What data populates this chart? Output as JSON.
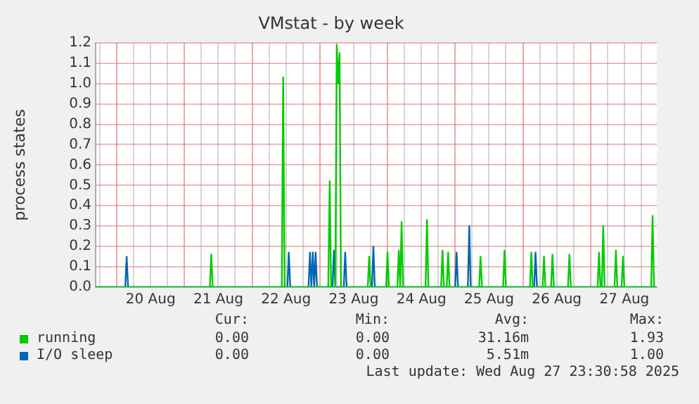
{
  "chart_data": {
    "type": "line",
    "title": "VMstat - by week",
    "ylabel": "process states",
    "xlim": [
      "2025-08-19T16:30",
      "2025-08-27T23:30"
    ],
    "xticks": [
      {
        "value": "2025-08-19T18:00",
        "label": null
      },
      {
        "value": "2025-08-20T00:00",
        "label": null
      },
      {
        "value": "2025-08-20T06:00",
        "label": null
      },
      {
        "value": "2025-08-20T12:00",
        "label": "20 Aug"
      },
      {
        "value": "2025-08-20T18:00",
        "label": null
      },
      {
        "value": "2025-08-21T00:00",
        "label": null
      },
      {
        "value": "2025-08-21T06:00",
        "label": null
      },
      {
        "value": "2025-08-21T12:00",
        "label": "21 Aug"
      },
      {
        "value": "2025-08-21T18:00",
        "label": null
      },
      {
        "value": "2025-08-22T00:00",
        "label": null
      },
      {
        "value": "2025-08-22T06:00",
        "label": null
      },
      {
        "value": "2025-08-22T12:00",
        "label": "22 Aug"
      },
      {
        "value": "2025-08-22T18:00",
        "label": null
      },
      {
        "value": "2025-08-23T00:00",
        "label": null
      },
      {
        "value": "2025-08-23T06:00",
        "label": null
      },
      {
        "value": "2025-08-23T12:00",
        "label": "23 Aug"
      },
      {
        "value": "2025-08-23T18:00",
        "label": null
      },
      {
        "value": "2025-08-24T00:00",
        "label": null
      },
      {
        "value": "2025-08-24T06:00",
        "label": null
      },
      {
        "value": "2025-08-24T12:00",
        "label": "24 Aug"
      },
      {
        "value": "2025-08-24T18:00",
        "label": null
      },
      {
        "value": "2025-08-25T00:00",
        "label": null
      },
      {
        "value": "2025-08-25T06:00",
        "label": null
      },
      {
        "value": "2025-08-25T12:00",
        "label": "25 Aug"
      },
      {
        "value": "2025-08-25T18:00",
        "label": null
      },
      {
        "value": "2025-08-26T00:00",
        "label": null
      },
      {
        "value": "2025-08-26T06:00",
        "label": null
      },
      {
        "value": "2025-08-26T12:00",
        "label": "26 Aug"
      },
      {
        "value": "2025-08-26T18:00",
        "label": null
      },
      {
        "value": "2025-08-27T00:00",
        "label": null
      },
      {
        "value": "2025-08-27T06:00",
        "label": null
      },
      {
        "value": "2025-08-27T12:00",
        "label": "27 Aug"
      },
      {
        "value": "2025-08-27T18:00",
        "label": null
      }
    ],
    "ylim": [
      0,
      1.2
    ],
    "yticks": [
      {
        "value": 0,
        "label": "0.0"
      },
      0.1,
      0.2,
      0.3,
      0.4,
      0.5,
      0.6,
      0.7,
      0.8,
      0.9,
      {
        "value": 1,
        "label": "1.0"
      },
      1.1,
      1.2
    ],
    "grid": true,
    "legend": "bottom",
    "marker": "none",
    "line_style": "solid",
    "series": [
      {
        "name": "running",
        "color": "#00cc00",
        "x": [
          "2025-08-19T16:30",
          "2025-08-21T09:00",
          "2025-08-21T09:30",
          "2025-08-21T10:00",
          "2025-08-22T10:30",
          "2025-08-22T11:00",
          "2025-08-22T11:30",
          "2025-08-23T03:00",
          "2025-08-23T03:30",
          "2025-08-23T04:00",
          "2025-08-23T05:30",
          "2025-08-23T06:00",
          "2025-08-23T06:30",
          "2025-08-23T07:00",
          "2025-08-23T07:30",
          "2025-08-23T17:00",
          "2025-08-23T17:30",
          "2025-08-23T18:00",
          "2025-08-23T23:30",
          "2025-08-24T00:00",
          "2025-08-24T00:30",
          "2025-08-24T03:30",
          "2025-08-24T04:00",
          "2025-08-24T04:30",
          "2025-08-24T05:00",
          "2025-08-24T05:30",
          "2025-08-24T13:30",
          "2025-08-24T14:00",
          "2025-08-24T14:30",
          "2025-08-24T19:00",
          "2025-08-24T19:30",
          "2025-08-24T20:00",
          "2025-08-24T21:00",
          "2025-08-24T21:30",
          "2025-08-24T22:00",
          "2025-08-25T08:30",
          "2025-08-25T09:00",
          "2025-08-25T09:30",
          "2025-08-25T17:00",
          "2025-08-25T17:30",
          "2025-08-25T18:00",
          "2025-08-26T02:30",
          "2025-08-26T03:00",
          "2025-08-26T03:30",
          "2025-08-26T07:00",
          "2025-08-26T07:30",
          "2025-08-26T08:00",
          "2025-08-26T10:00",
          "2025-08-26T10:30",
          "2025-08-26T11:00",
          "2025-08-26T16:00",
          "2025-08-26T16:30",
          "2025-08-26T17:00",
          "2025-08-27T02:30",
          "2025-08-27T03:00",
          "2025-08-27T03:30",
          "2025-08-27T04:00",
          "2025-08-27T04:30",
          "2025-08-27T05:00",
          "2025-08-27T08:30",
          "2025-08-27T09:00",
          "2025-08-27T09:30",
          "2025-08-27T11:00",
          "2025-08-27T11:30",
          "2025-08-27T12:00",
          "2025-08-27T21:30",
          "2025-08-27T22:00",
          "2025-08-27T22:30",
          "2025-08-27T23:30"
        ],
        "values": [
          0,
          0,
          0.16,
          0,
          0,
          1.03,
          0,
          0,
          0.52,
          0,
          0,
          1.19,
          1.0,
          1.15,
          0,
          0,
          0.15,
          0,
          0,
          0.17,
          0,
          0,
          0.18,
          0,
          0.32,
          0,
          0,
          0.33,
          0,
          0,
          0.18,
          0,
          0,
          0.17,
          0,
          0,
          0.15,
          0,
          0,
          0.18,
          0,
          0,
          0.17,
          0,
          0,
          0.15,
          0,
          0,
          0.16,
          0,
          0,
          0.16,
          0,
          0,
          0.17,
          0,
          0,
          0.3,
          0,
          0,
          0.18,
          0,
          0,
          0.15,
          0,
          0,
          0.35,
          0,
          0
        ]
      },
      {
        "name": "I/O sleep",
        "color": "#0066b3",
        "x": [
          "2025-08-19T16:30",
          "2025-08-20T03:00",
          "2025-08-20T03:30",
          "2025-08-20T04:00",
          "2025-08-22T12:30",
          "2025-08-22T13:00",
          "2025-08-22T13:30",
          "2025-08-22T20:00",
          "2025-08-22T20:30",
          "2025-08-22T21:00",
          "2025-08-22T21:30",
          "2025-08-22T22:00",
          "2025-08-22T22:30",
          "2025-08-22T23:00",
          "2025-08-23T04:30",
          "2025-08-23T05:00",
          "2025-08-23T05:30",
          "2025-08-23T08:30",
          "2025-08-23T09:00",
          "2025-08-23T09:30",
          "2025-08-23T18:30",
          "2025-08-23T19:00",
          "2025-08-23T19:30",
          "2025-08-25T00:00",
          "2025-08-25T00:30",
          "2025-08-25T01:00",
          "2025-08-25T04:30",
          "2025-08-25T05:00",
          "2025-08-25T05:30",
          "2025-08-26T04:00",
          "2025-08-26T04:30",
          "2025-08-26T05:00",
          "2025-08-27T23:30"
        ],
        "values": [
          0,
          0,
          0.15,
          0,
          0,
          0.17,
          0,
          0,
          0.17,
          0,
          0.17,
          0,
          0.17,
          0,
          0,
          0.18,
          0,
          0,
          0.17,
          0,
          0,
          0.2,
          0,
          0,
          0.17,
          0,
          0,
          0.3,
          0,
          0,
          0.17,
          0,
          0
        ]
      }
    ],
    "annotations": [
      "Cur:",
      "Min:",
      "Avg:",
      "Max:",
      "0.00",
      "0.00",
      "31.16m",
      "1.93",
      "0.00",
      "0.00",
      "5.51m",
      "1.00",
      "Last update: Wed Aug 27 23:30:58 2025"
    ]
  }
}
